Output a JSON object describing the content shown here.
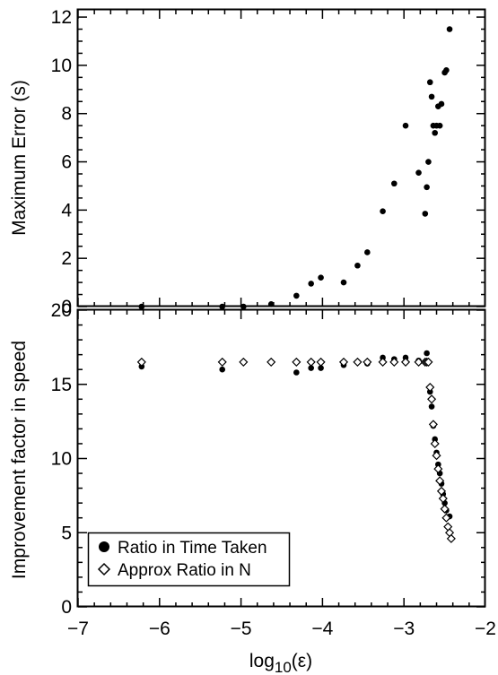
{
  "chart_data": [
    {
      "type": "scatter",
      "title": "",
      "xlabel": "",
      "ylabel": "Maximum Error (s)",
      "xlim": [
        -7,
        -2
      ],
      "ylim": [
        0,
        12.3
      ],
      "yticks": [
        0,
        2,
        4,
        6,
        8,
        10,
        12
      ],
      "series": [
        {
          "marker": "filled-circle",
          "points": [
            [
              -6.22,
              0.0
            ],
            [
              -5.23,
              0.0
            ],
            [
              -4.97,
              0.0
            ],
            [
              -4.63,
              0.1
            ],
            [
              -4.32,
              0.45
            ],
            [
              -4.14,
              0.95
            ],
            [
              -4.02,
              1.2
            ],
            [
              -3.74,
              1.0
            ],
            [
              -3.57,
              1.7
            ],
            [
              -3.45,
              2.25
            ],
            [
              -3.26,
              3.95
            ],
            [
              -3.12,
              5.1
            ],
            [
              -2.98,
              7.5
            ],
            [
              -2.82,
              5.55
            ],
            [
              -2.74,
              3.85
            ],
            [
              -2.72,
              4.95
            ],
            [
              -2.7,
              6.0
            ],
            [
              -2.68,
              9.3
            ],
            [
              -2.66,
              8.7
            ],
            [
              -2.64,
              7.5
            ],
            [
              -2.62,
              7.2
            ],
            [
              -2.6,
              7.5
            ],
            [
              -2.58,
              8.3
            ],
            [
              -2.56,
              7.5
            ],
            [
              -2.54,
              8.4
            ],
            [
              -2.5,
              9.7
            ],
            [
              -2.48,
              9.8
            ],
            [
              -2.44,
              11.5
            ]
          ]
        }
      ]
    },
    {
      "type": "scatter",
      "title": "",
      "xlabel": "log10(ε)",
      "ylabel": "Improvement factor in speed",
      "xlim": [
        -7,
        -2
      ],
      "ylim": [
        0,
        20
      ],
      "xticks": [
        -7,
        -6,
        -5,
        -4,
        -3,
        -2
      ],
      "xtick_labels": [
        "−7",
        "−6",
        "−5",
        "−4",
        "−3",
        "−2"
      ],
      "yticks": [
        0,
        5,
        10,
        15,
        20
      ],
      "legend": {
        "position": "bottom-left"
      },
      "series": [
        {
          "name": "Ratio in Time Taken",
          "marker": "filled-circle",
          "points": [
            [
              -6.22,
              16.2
            ],
            [
              -5.23,
              16.0
            ],
            [
              -4.97,
              16.5
            ],
            [
              -4.63,
              16.5
            ],
            [
              -4.32,
              15.8
            ],
            [
              -4.14,
              16.1
            ],
            [
              -4.02,
              16.1
            ],
            [
              -3.74,
              16.3
            ],
            [
              -3.57,
              16.5
            ],
            [
              -3.45,
              16.4
            ],
            [
              -3.26,
              16.8
            ],
            [
              -3.12,
              16.7
            ],
            [
              -2.98,
              16.8
            ],
            [
              -2.82,
              16.6
            ],
            [
              -2.74,
              16.5
            ],
            [
              -2.72,
              17.1
            ],
            [
              -2.7,
              16.5
            ],
            [
              -2.68,
              14.5
            ],
            [
              -2.66,
              13.5
            ],
            [
              -2.64,
              12.2
            ],
            [
              -2.62,
              11.3
            ],
            [
              -2.6,
              10.4
            ],
            [
              -2.58,
              9.6
            ],
            [
              -2.56,
              9.0
            ],
            [
              -2.54,
              8.3
            ],
            [
              -2.52,
              7.6
            ],
            [
              -2.5,
              7.0
            ],
            [
              -2.48,
              6.5
            ],
            [
              -2.44,
              6.1
            ]
          ]
        },
        {
          "name": "Approx Ratio in N",
          "marker": "open-diamond",
          "points": [
            [
              -6.22,
              16.5
            ],
            [
              -5.23,
              16.5
            ],
            [
              -4.97,
              16.5
            ],
            [
              -4.63,
              16.5
            ],
            [
              -4.32,
              16.5
            ],
            [
              -4.14,
              16.5
            ],
            [
              -4.02,
              16.5
            ],
            [
              -3.74,
              16.5
            ],
            [
              -3.57,
              16.5
            ],
            [
              -3.45,
              16.5
            ],
            [
              -3.26,
              16.5
            ],
            [
              -3.12,
              16.5
            ],
            [
              -2.98,
              16.5
            ],
            [
              -2.82,
              16.5
            ],
            [
              -2.74,
              16.5
            ],
            [
              -2.72,
              16.5
            ],
            [
              -2.7,
              16.5
            ],
            [
              -2.68,
              14.8
            ],
            [
              -2.66,
              14.0
            ],
            [
              -2.64,
              12.3
            ],
            [
              -2.62,
              11.0
            ],
            [
              -2.6,
              10.2
            ],
            [
              -2.58,
              9.3
            ],
            [
              -2.56,
              8.5
            ],
            [
              -2.54,
              7.8
            ],
            [
              -2.52,
              7.3
            ],
            [
              -2.5,
              6.6
            ],
            [
              -2.48,
              6.0
            ],
            [
              -2.46,
              5.4
            ],
            [
              -2.44,
              5.0
            ],
            [
              -2.42,
              4.6
            ]
          ]
        }
      ]
    }
  ]
}
